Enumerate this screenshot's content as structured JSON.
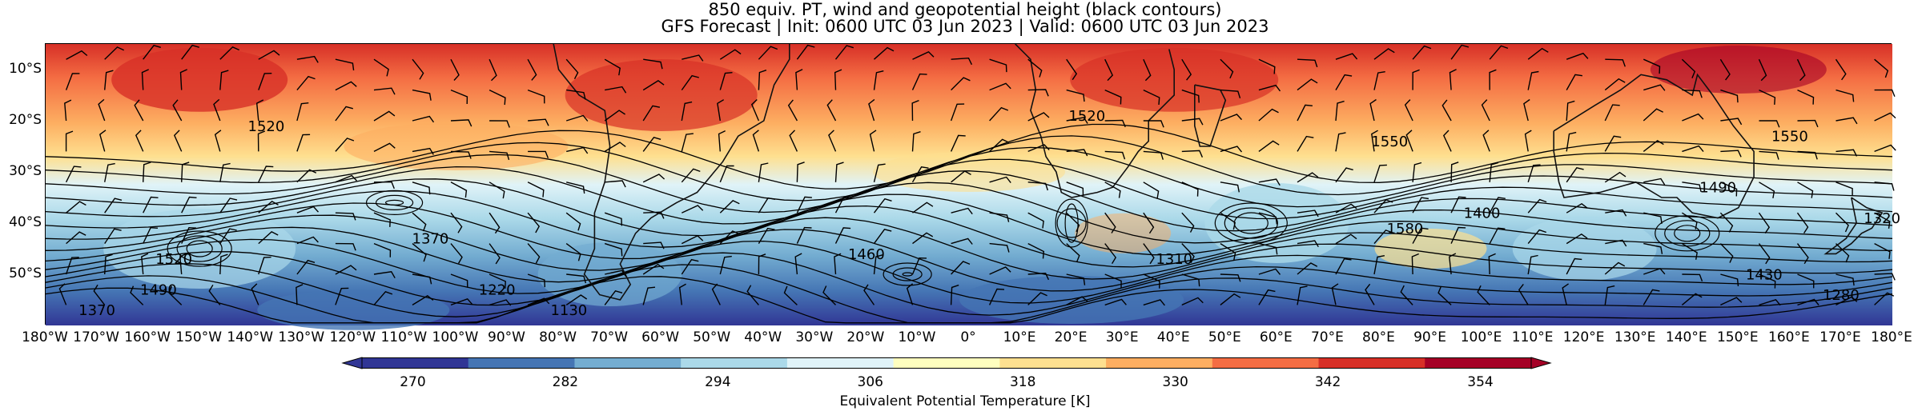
{
  "title_line1": "850 equiv. PT, wind and geopotential height (black contours)",
  "title_line2": "GFS Forecast | Init: 0600 UTC 03 Jun 2023 | Valid: 0600 UTC 03 Jun 2023",
  "lat_ticks": [
    "10°S",
    "20°S",
    "30°S",
    "40°S",
    "50°S"
  ],
  "lon_ticks": [
    "180°W",
    "170°W",
    "160°W",
    "150°W",
    "140°W",
    "130°W",
    "120°W",
    "110°W",
    "100°W",
    "90°W",
    "80°W",
    "70°W",
    "60°W",
    "50°W",
    "40°W",
    "30°W",
    "20°W",
    "10°W",
    "0°",
    "10°E",
    "20°E",
    "30°E",
    "40°E",
    "50°E",
    "60°E",
    "70°E",
    "80°E",
    "90°E",
    "100°E",
    "110°E",
    "120°E",
    "130°E",
    "140°E",
    "150°E",
    "160°E",
    "170°E",
    "180°E"
  ],
  "map": {
    "lat_range": [
      -60,
      -5
    ],
    "lon_range": [
      -180,
      180
    ]
  },
  "contour_labels": [
    {
      "text": "1520",
      "lon": -137,
      "lat": -22
    },
    {
      "text": "1520",
      "lon": 23,
      "lat": -20
    },
    {
      "text": "1550",
      "lon": 82,
      "lat": -25
    },
    {
      "text": "1550",
      "lon": 160,
      "lat": -24
    },
    {
      "text": "1580",
      "lon": 85,
      "lat": -42
    },
    {
      "text": "1400",
      "lon": 100,
      "lat": -39
    },
    {
      "text": "1490",
      "lon": 146,
      "lat": -34
    },
    {
      "text": "1370",
      "lon": -105,
      "lat": -44
    },
    {
      "text": "1460",
      "lon": -20,
      "lat": -47
    },
    {
      "text": "1310",
      "lon": 40,
      "lat": -48
    },
    {
      "text": "1520",
      "lon": -155,
      "lat": -48
    },
    {
      "text": "1490",
      "lon": -158,
      "lat": -54
    },
    {
      "text": "1220",
      "lon": -92,
      "lat": -54
    },
    {
      "text": "1130",
      "lon": -78,
      "lat": -58
    },
    {
      "text": "1370",
      "lon": -170,
      "lat": -58
    },
    {
      "text": "1430",
      "lon": 155,
      "lat": -51
    },
    {
      "text": "1280",
      "lon": 170,
      "lat": -55
    },
    {
      "text": "1320",
      "lon": 178,
      "lat": -40
    }
  ],
  "colorbar": {
    "label": "Equivalent Potential Temperature [K]",
    "ticks": [
      "270",
      "282",
      "294",
      "306",
      "318",
      "330",
      "342",
      "354"
    ],
    "range": [
      266,
      358
    ],
    "colors": [
      "#313695",
      "#4575b4",
      "#74add1",
      "#abd9e9",
      "#e0f3f8",
      "#ffffbf",
      "#fee090",
      "#fdae61",
      "#f46d43",
      "#d73027",
      "#a50026"
    ]
  }
}
